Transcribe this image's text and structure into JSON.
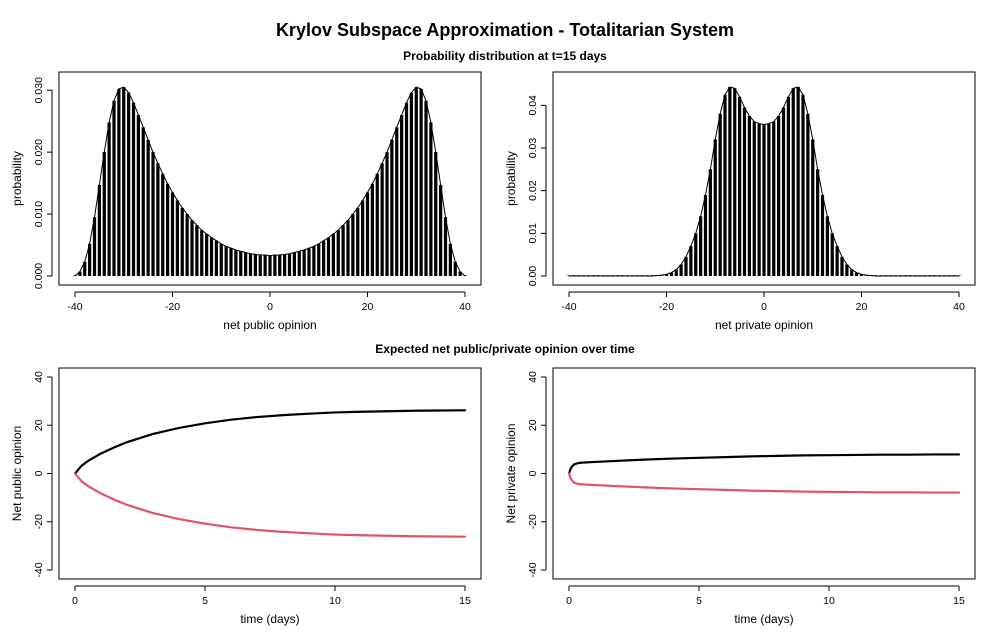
{
  "title": "Krylov Subspace Approximation - Totalitarian System",
  "subtitles": {
    "top": "Probability distribution at t=15 days",
    "bottom": "Expected net public/private opinion over time"
  },
  "colors": {
    "bar": "#000000",
    "positive_line": "#000000",
    "negative_line": "#DF536B"
  },
  "chart_data": [
    {
      "id": "public-distribution",
      "type": "bar",
      "xlabel": "net public opinion",
      "ylabel": "probability",
      "xlim": [
        -40,
        40
      ],
      "ylim": [
        0,
        0.031
      ],
      "xticks": [
        -40,
        -20,
        0,
        20,
        40
      ],
      "yticks": [
        0.0,
        0.01,
        0.02,
        0.03
      ],
      "ytick_labels": [
        "0.000",
        "0.010",
        "0.020",
        "0.030"
      ],
      "x": [
        -40,
        -39,
        -38,
        -37,
        -36,
        -35,
        -34,
        -33,
        -32,
        -31,
        -30,
        -29,
        -28,
        -27,
        -26,
        -25,
        -24,
        -23,
        -22,
        -21,
        -20,
        -19,
        -18,
        -17,
        -16,
        -15,
        -14,
        -13,
        -12,
        -11,
        -10,
        -9,
        -8,
        -7,
        -6,
        -5,
        -4,
        -3,
        -2,
        -1,
        0,
        1,
        2,
        3,
        4,
        5,
        6,
        7,
        8,
        9,
        10,
        11,
        12,
        13,
        14,
        15,
        16,
        17,
        18,
        19,
        20,
        21,
        22,
        23,
        24,
        25,
        26,
        27,
        28,
        29,
        30,
        31,
        32,
        33,
        34,
        35,
        36,
        37,
        38,
        39,
        40
      ],
      "values": [
        0.0,
        0.0007,
        0.0023,
        0.0052,
        0.0095,
        0.0147,
        0.02,
        0.0248,
        0.0283,
        0.0302,
        0.0305,
        0.0296,
        0.028,
        0.026,
        0.024,
        0.022,
        0.02,
        0.0182,
        0.0165,
        0.0149,
        0.0135,
        0.0122,
        0.011,
        0.01,
        0.009,
        0.0082,
        0.0074,
        0.0068,
        0.0062,
        0.0057,
        0.0052,
        0.0048,
        0.0045,
        0.0042,
        0.004,
        0.0038,
        0.0036,
        0.0035,
        0.0034,
        0.0034,
        0.0033,
        0.0034,
        0.0034,
        0.0035,
        0.0036,
        0.0038,
        0.004,
        0.0042,
        0.0045,
        0.0048,
        0.0052,
        0.0057,
        0.0062,
        0.0068,
        0.0074,
        0.0082,
        0.009,
        0.01,
        0.011,
        0.0122,
        0.0135,
        0.0149,
        0.0165,
        0.0182,
        0.02,
        0.022,
        0.024,
        0.026,
        0.028,
        0.0296,
        0.0305,
        0.0302,
        0.0283,
        0.0248,
        0.02,
        0.0147,
        0.0095,
        0.0052,
        0.0023,
        0.0007,
        0.0
      ]
    },
    {
      "id": "private-distribution",
      "type": "bar",
      "xlabel": "net private opinion",
      "ylabel": "probability",
      "xlim": [
        -40,
        40
      ],
      "ylim": [
        0,
        0.045
      ],
      "xticks": [
        -40,
        -20,
        0,
        20,
        40
      ],
      "yticks": [
        0.0,
        0.01,
        0.02,
        0.03,
        0.04
      ],
      "ytick_labels": [
        "0.00",
        "0.01",
        "0.02",
        "0.03",
        "0.04"
      ],
      "x": [
        -40,
        -39,
        -38,
        -37,
        -36,
        -35,
        -34,
        -33,
        -32,
        -31,
        -30,
        -29,
        -28,
        -27,
        -26,
        -25,
        -24,
        -23,
        -22,
        -21,
        -20,
        -19,
        -18,
        -17,
        -16,
        -15,
        -14,
        -13,
        -12,
        -11,
        -10,
        -9,
        -8,
        -7,
        -6,
        -5,
        -4,
        -3,
        -2,
        -1,
        0,
        1,
        2,
        3,
        4,
        5,
        6,
        7,
        8,
        9,
        10,
        11,
        12,
        13,
        14,
        15,
        16,
        17,
        18,
        19,
        20,
        21,
        22,
        23,
        24,
        25,
        26,
        27,
        28,
        29,
        30,
        31,
        32,
        33,
        34,
        35,
        36,
        37,
        38,
        39,
        40
      ],
      "values": [
        0,
        0,
        0,
        0,
        0,
        0,
        0,
        0,
        0,
        0,
        0,
        0,
        0,
        0,
        0,
        0,
        0,
        0,
        0.0001,
        0.0002,
        0.0004,
        0.0008,
        0.0015,
        0.0027,
        0.0045,
        0.007,
        0.01,
        0.014,
        0.019,
        0.025,
        0.032,
        0.038,
        0.0425,
        0.0443,
        0.044,
        0.042,
        0.0395,
        0.0375,
        0.0362,
        0.0357,
        0.0355,
        0.0357,
        0.0362,
        0.0375,
        0.0395,
        0.042,
        0.044,
        0.0443,
        0.0425,
        0.038,
        0.032,
        0.025,
        0.019,
        0.014,
        0.01,
        0.007,
        0.0045,
        0.0027,
        0.0015,
        0.0008,
        0.0004,
        0.0002,
        0.0001,
        0,
        0,
        0,
        0,
        0,
        0,
        0,
        0,
        0,
        0,
        0,
        0,
        0,
        0,
        0,
        0,
        0,
        0
      ]
    },
    {
      "id": "public-over-time",
      "type": "line",
      "xlabel": "time (days)",
      "ylabel": "Net public opinion",
      "xlim": [
        0,
        15
      ],
      "ylim": [
        -40,
        40
      ],
      "xticks": [
        0,
        5,
        10,
        15
      ],
      "yticks": [
        -40,
        -20,
        0,
        20,
        40
      ],
      "x": [
        0,
        0.25,
        0.5,
        1,
        1.5,
        2,
        3,
        4,
        5,
        6,
        7,
        8,
        9,
        10,
        11,
        12,
        13,
        14,
        15
      ],
      "series": [
        {
          "values": [
            0,
            3.2,
            5.2,
            8.3,
            10.8,
            13.0,
            16.4,
            18.9,
            20.8,
            22.3,
            23.4,
            24.2,
            24.8,
            25.3,
            25.6,
            25.8,
            26.0,
            26.1,
            26.2
          ]
        },
        {
          "values": [
            0,
            -3.2,
            -5.2,
            -8.3,
            -10.8,
            -13.0,
            -16.4,
            -18.9,
            -20.8,
            -22.3,
            -23.4,
            -24.2,
            -24.8,
            -25.3,
            -25.6,
            -25.8,
            -26.0,
            -26.1,
            -26.2
          ]
        }
      ]
    },
    {
      "id": "private-over-time",
      "type": "line",
      "xlabel": "time (days)",
      "ylabel": "Net private opinion",
      "xlim": [
        0,
        15
      ],
      "ylim": [
        -40,
        40
      ],
      "xticks": [
        0,
        5,
        10,
        15
      ],
      "yticks": [
        -40,
        -20,
        0,
        20,
        40
      ],
      "x": [
        0,
        0.05,
        0.1,
        0.2,
        0.35,
        0.5,
        1,
        2,
        3,
        4,
        5,
        6,
        7,
        8,
        9,
        10,
        11,
        12,
        13,
        14,
        15
      ],
      "series": [
        {
          "values": [
            0,
            1.6,
            2.7,
            3.8,
            4.3,
            4.5,
            4.8,
            5.3,
            5.8,
            6.2,
            6.5,
            6.8,
            7.1,
            7.3,
            7.5,
            7.6,
            7.7,
            7.8,
            7.8,
            7.9,
            7.9
          ]
        },
        {
          "values": [
            0,
            -1.6,
            -2.7,
            -3.8,
            -4.3,
            -4.5,
            -4.8,
            -5.3,
            -5.8,
            -6.2,
            -6.5,
            -6.8,
            -7.1,
            -7.3,
            -7.5,
            -7.6,
            -7.7,
            -7.8,
            -7.8,
            -7.9,
            -7.9
          ]
        }
      ]
    }
  ]
}
